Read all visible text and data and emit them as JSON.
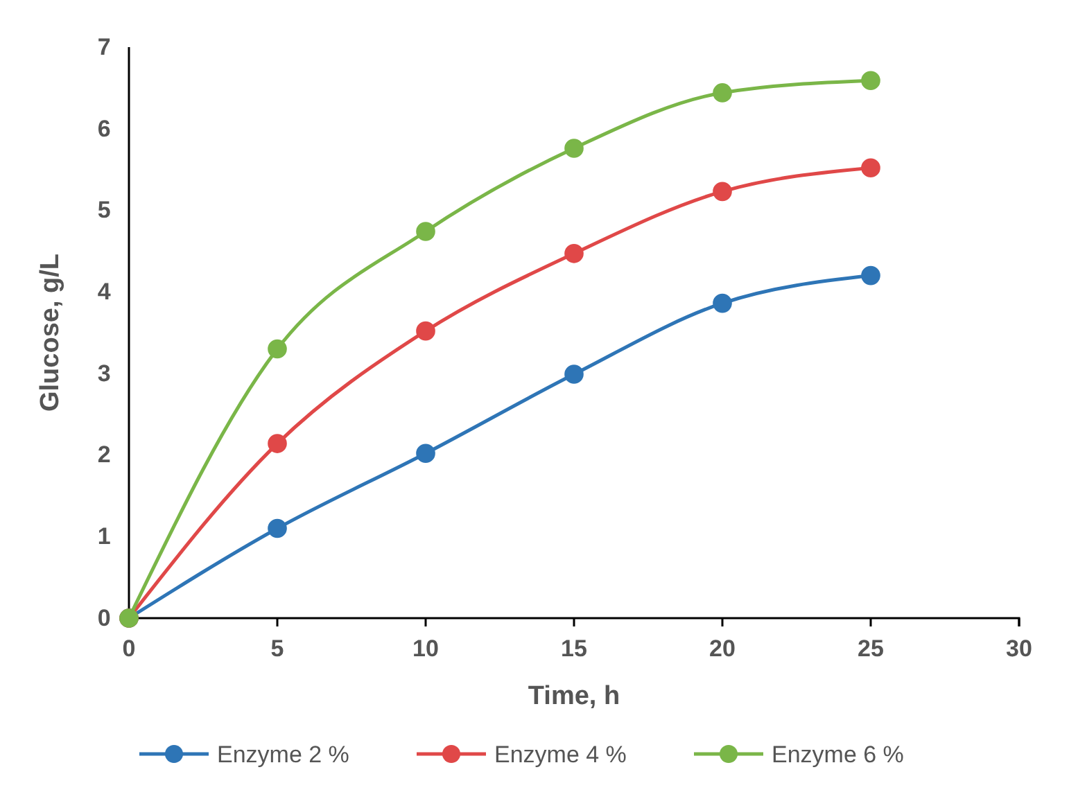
{
  "chart_data": {
    "type": "line",
    "xlabel": "Time, h",
    "ylabel": "Glucose, g/L",
    "x": [
      0,
      5,
      10,
      15,
      20,
      25
    ],
    "xlim": [
      0,
      30
    ],
    "xticks": [
      0,
      5,
      10,
      15,
      20,
      25,
      30
    ],
    "ylim": [
      0,
      7
    ],
    "yticks": [
      0,
      1,
      2,
      3,
      4,
      5,
      6,
      7
    ],
    "grid": false,
    "legend": "bottom",
    "marker": "circle",
    "line_style": "solid",
    "series": [
      {
        "name": "Enzyme 2 %",
        "color": "#2e75b6",
        "values": [
          0,
          1.1,
          2.02,
          2.99,
          3.86,
          4.2
        ]
      },
      {
        "name": "Enzyme 4 %",
        "color": "#e04848",
        "values": [
          0,
          2.14,
          3.52,
          4.47,
          5.23,
          5.52
        ]
      },
      {
        "name": "Enzyme 6 %",
        "color": "#7ab648",
        "values": [
          0,
          3.3,
          4.74,
          5.76,
          6.44,
          6.59
        ]
      }
    ]
  }
}
